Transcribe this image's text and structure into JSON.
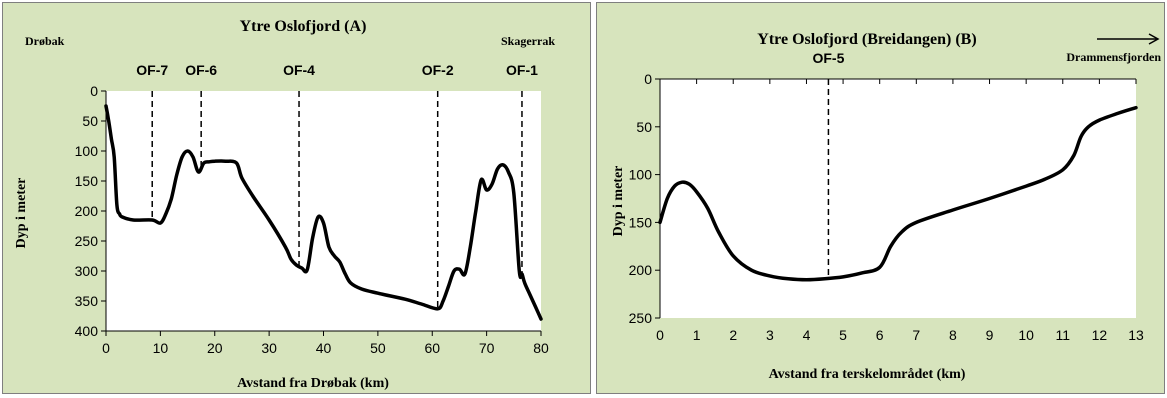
{
  "chart_data": [
    {
      "type": "line",
      "title": "Ytre Oslofjord (A)",
      "xlabel": "Avstand fra Drøbak (km)",
      "ylabel": "Dyp i meter",
      "xlim": [
        0,
        80
      ],
      "ylim": [
        0,
        400
      ],
      "y_inverted": true,
      "grid": false,
      "xticks": [
        0,
        10,
        20,
        30,
        40,
        50,
        60,
        70,
        80
      ],
      "yticks": [
        0,
        50,
        100,
        150,
        200,
        250,
        300,
        350,
        400
      ],
      "annotations": {
        "left_place": "Drøbak",
        "right_place": "Skagerrak",
        "panel_letter": "A"
      },
      "stations": [
        {
          "label": "OF-7",
          "x": 8.5
        },
        {
          "label": "OF-6",
          "x": 17.5
        },
        {
          "label": "OF-4",
          "x": 35.5
        },
        {
          "label": "OF-2",
          "x": 61
        },
        {
          "label": "OF-1",
          "x": 76.5
        }
      ],
      "series": [
        {
          "x": [
            0,
            0.5,
            1,
            1.5,
            2,
            2.5,
            3,
            5,
            8.5,
            10,
            11,
            12,
            13,
            14,
            15,
            16,
            17,
            18,
            19,
            20,
            22,
            24,
            25,
            27,
            30,
            33,
            34,
            35,
            36,
            37,
            38,
            39,
            40,
            41,
            42,
            43,
            44,
            45,
            47,
            50,
            55,
            58,
            61,
            62,
            63,
            64,
            65,
            66,
            67,
            68,
            69,
            70,
            71,
            72,
            73,
            74,
            75,
            76,
            76.5,
            77,
            78,
            79,
            80
          ],
          "y": [
            25,
            50,
            80,
            110,
            190,
            205,
            210,
            215,
            215,
            220,
            205,
            180,
            140,
            110,
            100,
            110,
            135,
            120,
            118,
            117,
            117,
            120,
            145,
            175,
            215,
            260,
            280,
            290,
            295,
            298,
            245,
            210,
            220,
            260,
            275,
            285,
            305,
            320,
            330,
            337,
            347,
            355,
            363,
            350,
            325,
            300,
            297,
            305,
            260,
            200,
            148,
            165,
            155,
            130,
            123,
            135,
            170,
            300,
            305,
            320,
            340,
            360,
            380
          ]
        }
      ]
    },
    {
      "type": "line",
      "title": "Ytre Oslofjord (Breidangen) (B)",
      "xlabel": "Avstand fra terskelområdet  (km)",
      "ylabel": "Dyp i meter",
      "xlim": [
        0,
        13
      ],
      "ylim": [
        0,
        250
      ],
      "y_inverted": true,
      "grid": false,
      "xticks": [
        0,
        1,
        2,
        3,
        4,
        5,
        6,
        7,
        8,
        9,
        10,
        11,
        12,
        13
      ],
      "yticks": [
        0,
        50,
        100,
        150,
        200,
        250
      ],
      "annotations": {
        "right_place": "Drammensfjorden",
        "panel_letter": "B"
      },
      "stations": [
        {
          "label": "OF-5",
          "x": 4.6
        }
      ],
      "series": [
        {
          "x": [
            0,
            0.2,
            0.4,
            0.6,
            0.8,
            1,
            1.3,
            1.6,
            2,
            2.5,
            3,
            3.5,
            4,
            4.5,
            5,
            5.5,
            6,
            6.3,
            6.6,
            7,
            8,
            9,
            10,
            10.5,
            11,
            11.3,
            11.5,
            11.7,
            12,
            12.5,
            13
          ],
          "y": [
            150,
            125,
            112,
            108,
            110,
            118,
            135,
            160,
            185,
            200,
            206,
            209,
            210,
            209,
            207,
            203,
            197,
            175,
            160,
            150,
            137,
            125,
            112,
            105,
            95,
            80,
            60,
            50,
            43,
            36,
            30
          ]
        }
      ]
    }
  ]
}
